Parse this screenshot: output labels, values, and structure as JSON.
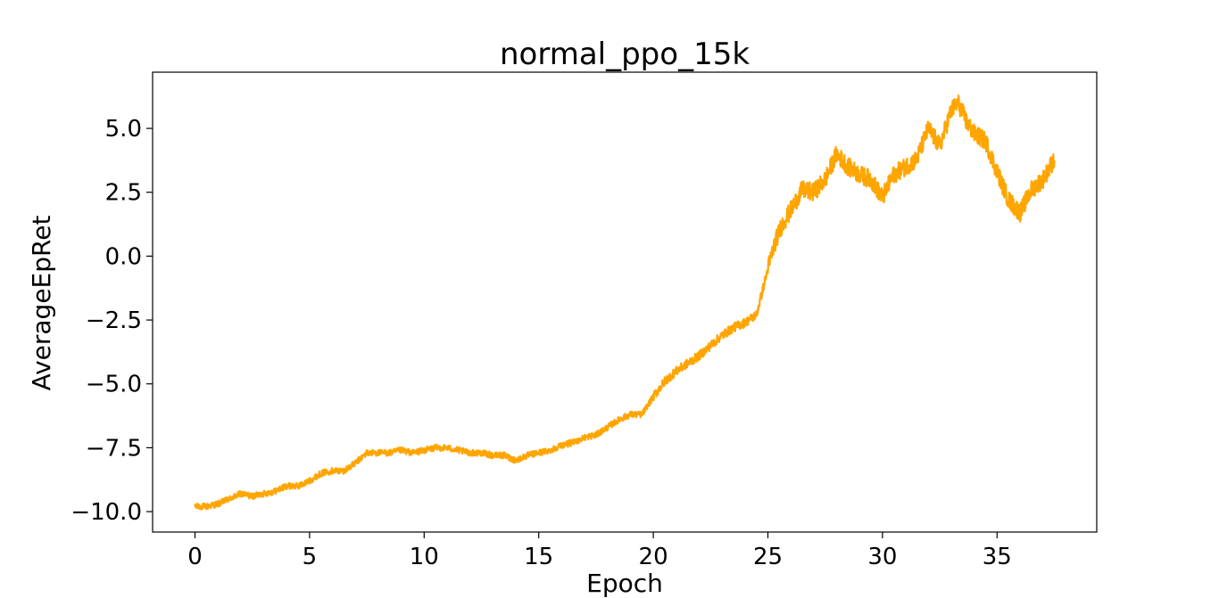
{
  "chart_data": {
    "type": "line",
    "title": "normal_ppo_15k",
    "xlabel": "Epoch",
    "ylabel": "AverageEpRet",
    "xlim": [
      -1.85,
      39.35
    ],
    "ylim": [
      -10.8,
      7.2
    ],
    "xticks": [
      0,
      5,
      10,
      15,
      20,
      25,
      30,
      35
    ],
    "xtick_labels": [
      "0",
      "5",
      "10",
      "15",
      "20",
      "25",
      "30",
      "35"
    ],
    "yticks": [
      -10.0,
      -7.5,
      -5.0,
      -2.5,
      0.0,
      2.5,
      5.0
    ],
    "ytick_labels": [
      "−10.0",
      "−7.5",
      "−5.0",
      "−2.5",
      "0.0",
      "2.5",
      "5.0"
    ],
    "grid": false,
    "legend": "none",
    "series": [
      {
        "color": "#FFA500",
        "noise_band": 0.45,
        "x": [
          0,
          0.5,
          1,
          1.5,
          2,
          2.5,
          3,
          3.5,
          4,
          4.5,
          5,
          5.5,
          6,
          6.5,
          7,
          7.5,
          8,
          8.5,
          9,
          9.5,
          10,
          10.5,
          11,
          11.5,
          12,
          12.5,
          13,
          13.5,
          14,
          14.5,
          15,
          15.5,
          16,
          16.5,
          17,
          17.5,
          18,
          18.5,
          19,
          19.5,
          20,
          20.5,
          21,
          21.5,
          22,
          22.5,
          23,
          23.5,
          24,
          24.5,
          25,
          25.3,
          25.6,
          26,
          26.5,
          27,
          27.5,
          28,
          28.5,
          29,
          29.5,
          30,
          30.5,
          31,
          31.5,
          32,
          32.5,
          33,
          33.3,
          33.7,
          34,
          34.5,
          35,
          35.5,
          36,
          36.5,
          37,
          37.5
        ],
        "values": [
          -9.8,
          -9.8,
          -9.7,
          -9.5,
          -9.3,
          -9.4,
          -9.3,
          -9.2,
          -9.0,
          -9.0,
          -8.8,
          -8.5,
          -8.4,
          -8.4,
          -8.1,
          -7.7,
          -7.7,
          -7.7,
          -7.6,
          -7.7,
          -7.6,
          -7.5,
          -7.5,
          -7.6,
          -7.7,
          -7.7,
          -7.8,
          -7.8,
          -8.0,
          -7.8,
          -7.7,
          -7.6,
          -7.4,
          -7.3,
          -7.1,
          -7.0,
          -6.7,
          -6.4,
          -6.2,
          -6.2,
          -5.5,
          -4.9,
          -4.5,
          -4.2,
          -3.9,
          -3.5,
          -3.1,
          -2.8,
          -2.6,
          -2.3,
          -0.5,
          0.5,
          1.2,
          1.8,
          2.6,
          2.5,
          3.0,
          4.0,
          3.5,
          3.2,
          3.0,
          2.3,
          3.2,
          3.5,
          3.8,
          5.0,
          4.3,
          5.7,
          6.0,
          5.2,
          4.8,
          4.5,
          3.3,
          2.2,
          1.7,
          2.6,
          3.0,
          3.8
        ]
      }
    ]
  }
}
